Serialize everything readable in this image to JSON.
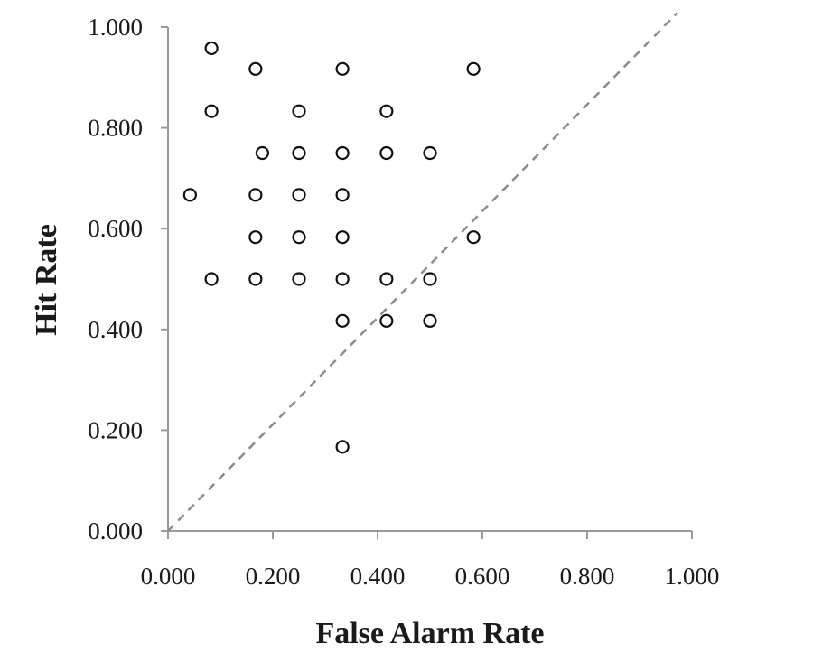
{
  "chart_data": {
    "type": "scatter",
    "title": "",
    "xlabel": "False Alarm Rate",
    "ylabel": "Hit Rate",
    "xlim": [
      0,
      1
    ],
    "ylim": [
      0,
      1
    ],
    "x_ticks": [
      "0.000",
      "0.200",
      "0.400",
      "0.600",
      "0.800",
      "1.000"
    ],
    "y_ticks": [
      "0.000",
      "0.200",
      "0.400",
      "0.600",
      "0.800",
      "1.000"
    ],
    "grid": false,
    "legend": "none",
    "reference_line": {
      "style": "dashed",
      "from": [
        0,
        0
      ],
      "to": [
        1,
        1
      ],
      "color": "#8c8c8c"
    },
    "marker": "open-circle",
    "points": [
      {
        "x": 0.083,
        "y": 0.958
      },
      {
        "x": 0.167,
        "y": 0.917
      },
      {
        "x": 0.333,
        "y": 0.917
      },
      {
        "x": 0.583,
        "y": 0.917
      },
      {
        "x": 0.083,
        "y": 0.833
      },
      {
        "x": 0.25,
        "y": 0.833
      },
      {
        "x": 0.417,
        "y": 0.833
      },
      {
        "x": 0.18,
        "y": 0.75
      },
      {
        "x": 0.25,
        "y": 0.75
      },
      {
        "x": 0.333,
        "y": 0.75
      },
      {
        "x": 0.417,
        "y": 0.75
      },
      {
        "x": 0.5,
        "y": 0.75
      },
      {
        "x": 0.042,
        "y": 0.667
      },
      {
        "x": 0.167,
        "y": 0.667
      },
      {
        "x": 0.25,
        "y": 0.667
      },
      {
        "x": 0.333,
        "y": 0.667
      },
      {
        "x": 0.167,
        "y": 0.583
      },
      {
        "x": 0.25,
        "y": 0.583
      },
      {
        "x": 0.333,
        "y": 0.583
      },
      {
        "x": 0.583,
        "y": 0.583
      },
      {
        "x": 0.083,
        "y": 0.5
      },
      {
        "x": 0.167,
        "y": 0.5
      },
      {
        "x": 0.25,
        "y": 0.5
      },
      {
        "x": 0.333,
        "y": 0.5
      },
      {
        "x": 0.417,
        "y": 0.5
      },
      {
        "x": 0.5,
        "y": 0.5
      },
      {
        "x": 0.333,
        "y": 0.417
      },
      {
        "x": 0.417,
        "y": 0.417
      },
      {
        "x": 0.5,
        "y": 0.417
      },
      {
        "x": 0.333,
        "y": 0.167
      }
    ]
  }
}
